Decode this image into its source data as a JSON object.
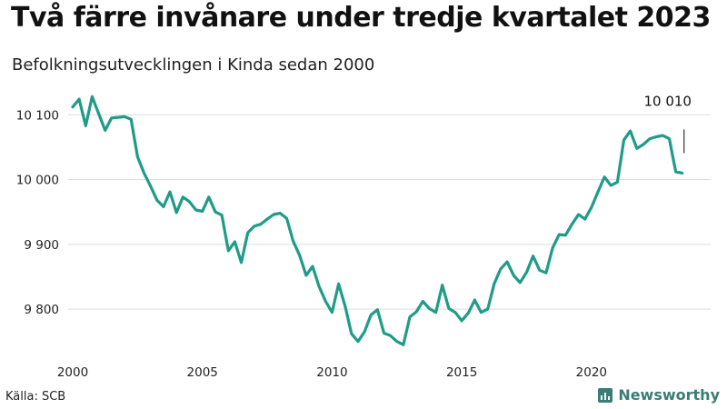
{
  "header": {
    "title": "Två färre invånare under tredje kvartalet 2023",
    "subtitle": "Befolkningsutvecklingen i Kinda sedan 2000"
  },
  "footer": {
    "source": "Källa: SCB",
    "brand": "Newsworthy"
  },
  "colors": {
    "line": "#1f9c87",
    "grid": "#dddddd",
    "brand": "#3a7d74"
  },
  "chart_data": {
    "type": "line",
    "title": "Två färre invånare under tredje kvartalet 2023",
    "subtitle": "Befolkningsutvecklingen i Kinda sedan 2000",
    "xlabel": "",
    "ylabel": "",
    "xlim": [
      2000,
      2024
    ],
    "ylim": [
      9730,
      10120
    ],
    "x_ticks": [
      2000,
      2005,
      2010,
      2015,
      2020
    ],
    "y_ticks": [
      9800,
      9900,
      10000,
      10100
    ],
    "y_tick_labels": [
      "9 800",
      "9 900",
      "10 000",
      "10 100"
    ],
    "grid": "horizontal",
    "annotation": {
      "label": "10 010",
      "x": 2023.5,
      "y": 10010
    },
    "series": [
      {
        "x": [
          2000.0,
          2000.25,
          2000.5,
          2000.75,
          2001.0,
          2001.25,
          2001.5,
          2001.75,
          2002.0,
          2002.25,
          2002.5,
          2002.75,
          2003.0,
          2003.25,
          2003.5,
          2003.75,
          2004.0,
          2004.25,
          2004.5,
          2004.75,
          2005.0,
          2005.25,
          2005.5,
          2005.75,
          2006.0,
          2006.25,
          2006.5,
          2006.75,
          2007.0,
          2007.25,
          2007.5,
          2007.75,
          2008.0,
          2008.25,
          2008.5,
          2008.75,
          2009.0,
          2009.25,
          2009.5,
          2009.75,
          2010.0,
          2010.25,
          2010.5,
          2010.75,
          2011.0,
          2011.25,
          2011.5,
          2011.75,
          2012.0,
          2012.25,
          2012.5,
          2012.75,
          2013.0,
          2013.25,
          2013.5,
          2013.75,
          2014.0,
          2014.25,
          2014.5,
          2014.75,
          2015.0,
          2015.25,
          2015.5,
          2015.75,
          2016.0,
          2016.25,
          2016.5,
          2016.75,
          2017.0,
          2017.25,
          2017.5,
          2017.75,
          2018.0,
          2018.25,
          2018.5,
          2018.75,
          2019.0,
          2019.25,
          2019.5,
          2019.75,
          2020.0,
          2020.25,
          2020.5,
          2020.75,
          2021.0,
          2021.25,
          2021.5,
          2021.75,
          2022.0,
          2022.25,
          2022.5,
          2022.75,
          2023.0,
          2023.25,
          2023.5
        ],
        "values": [
          10112,
          10124,
          10083,
          10128,
          10102,
          10076,
          10095,
          10096,
          10097,
          10093,
          10035,
          10010,
          9990,
          9968,
          9958,
          9981,
          9949,
          9973,
          9966,
          9953,
          9951,
          9973,
          9950,
          9945,
          9890,
          9904,
          9872,
          9918,
          9928,
          9931,
          9939,
          9946,
          9948,
          9940,
          9905,
          9883,
          9852,
          9866,
          9835,
          9812,
          9795,
          9839,
          9805,
          9762,
          9750,
          9765,
          9791,
          9799,
          9763,
          9759,
          9750,
          9745,
          9788,
          9796,
          9812,
          9801,
          9795,
          9837,
          9801,
          9795,
          9782,
          9794,
          9814,
          9795,
          9800,
          9839,
          9862,
          9873,
          9852,
          9841,
          9857,
          9882,
          9860,
          9856,
          9894,
          9915,
          9914,
          9931,
          9946,
          9939,
          9957,
          9981,
          10004,
          9991,
          9996,
          10061,
          10075,
          10048,
          10054,
          10063,
          10066,
          10068,
          10063,
          10012,
          10010
        ]
      }
    ]
  }
}
